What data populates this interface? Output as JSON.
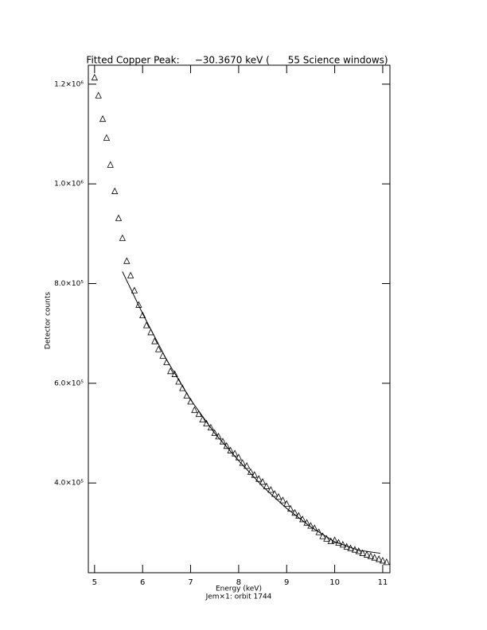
{
  "chart_data": {
    "type": "scatter",
    "title": "Fitted Copper Peak:     −30.3670 keV (      55 Science windows)",
    "x_label": "Energy (keV)",
    "subtitle": "Jem×1: orbit 1744",
    "y_label": "Detector counts",
    "xlim": [
      4.87,
      11.15
    ],
    "ylim": [
      220000,
      1238000
    ],
    "xticks": [
      5,
      6,
      7,
      8,
      9,
      10,
      11
    ],
    "yticks": [
      {
        "value": 400000,
        "label": "4.0×10⁵"
      },
      {
        "value": 600000,
        "label": "6.0×10⁵"
      },
      {
        "value": 800000,
        "label": "8.0×10⁵"
      },
      {
        "value": 1000000,
        "label": "1.0×10⁶"
      },
      {
        "value": 1200000,
        "label": "1.2×10⁶"
      }
    ],
    "series": [
      {
        "style": "markers",
        "color": "#000000",
        "x": [
          5.0,
          5.08,
          5.17,
          5.25,
          5.33,
          5.42,
          5.5,
          5.58,
          5.67,
          5.75,
          5.83,
          5.92,
          6.0,
          6.08,
          6.17,
          6.25,
          6.33,
          6.42,
          6.5,
          6.58,
          6.67,
          6.75,
          6.83,
          6.92,
          7.0,
          7.08,
          7.17,
          7.25,
          7.33,
          7.42,
          7.5,
          7.58,
          7.67,
          7.75,
          7.83,
          7.92,
          8.0,
          8.08,
          8.17,
          8.25,
          8.33,
          8.42,
          8.5,
          8.58,
          8.67,
          8.75,
          8.83,
          8.92,
          9.0,
          9.08,
          9.17,
          9.25,
          9.33,
          9.42,
          9.5,
          9.58,
          9.67,
          9.75,
          9.83,
          9.92,
          10.0,
          10.08,
          10.17,
          10.25,
          10.33,
          10.42,
          10.5,
          10.58,
          10.67,
          10.75,
          10.83,
          10.92,
          11.0,
          11.08
        ],
        "values": [
          1213000,
          1177000,
          1130000,
          1092000,
          1038000,
          985000,
          931000,
          891000,
          845000,
          816000,
          786000,
          757000,
          736000,
          716000,
          702000,
          684000,
          668000,
          655000,
          642000,
          624000,
          618000,
          603000,
          590000,
          575000,
          563000,
          546000,
          538000,
          527000,
          519000,
          511000,
          500000,
          493000,
          483000,
          474000,
          465000,
          459000,
          451000,
          440000,
          434000,
          422000,
          416000,
          408000,
          402000,
          393000,
          386000,
          378000,
          372000,
          365000,
          358000,
          348000,
          340000,
          334000,
          327000,
          320000,
          314000,
          309000,
          301000,
          293000,
          288000,
          283000,
          285000,
          280000,
          276000,
          272000,
          269000,
          266000,
          263000,
          259000,
          256000,
          253000,
          250000,
          247000,
          244000,
          241000
        ]
      },
      {
        "style": "line",
        "color": "#000000",
        "x": [
          5.58,
          6.0,
          6.5,
          7.0,
          7.5,
          8.0,
          8.5,
          9.0,
          9.5,
          10.0,
          10.5,
          10.95
        ],
        "values": [
          824000,
          740000,
          647000,
          567000,
          500000,
          445000,
          393000,
          349000,
          312000,
          282000,
          265000,
          259000
        ]
      }
    ]
  }
}
